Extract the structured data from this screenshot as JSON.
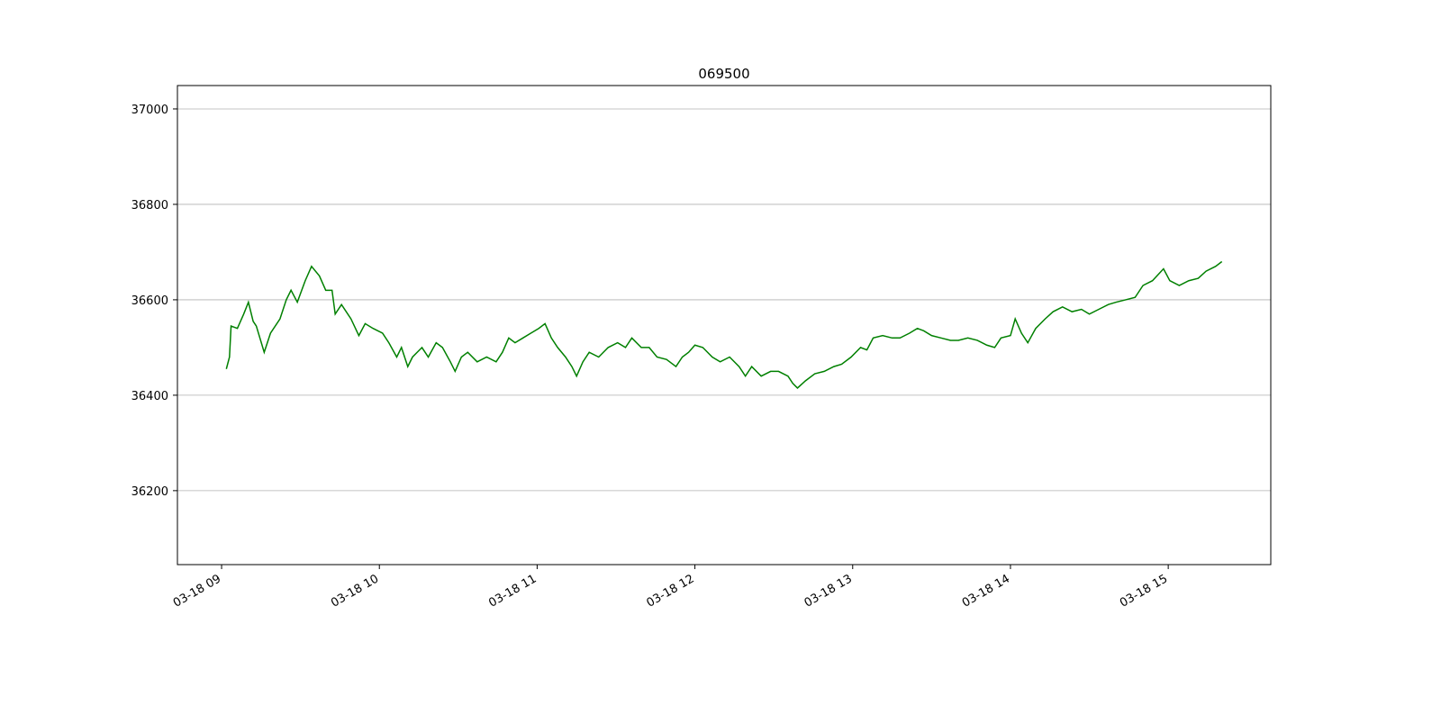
{
  "chart_data": {
    "type": "line",
    "title": "069500",
    "x": [
      9.03,
      9.05,
      9.06,
      9.1,
      9.14,
      9.17,
      9.2,
      9.22,
      9.27,
      9.31,
      9.37,
      9.41,
      9.44,
      9.48,
      9.53,
      9.57,
      9.62,
      9.66,
      9.7,
      9.72,
      9.76,
      9.82,
      9.87,
      9.91,
      9.96,
      10.02,
      10.06,
      10.11,
      10.14,
      10.18,
      10.21,
      10.27,
      10.31,
      10.36,
      10.4,
      10.45,
      10.48,
      10.52,
      10.56,
      10.62,
      10.68,
      10.74,
      10.78,
      10.82,
      10.86,
      10.91,
      10.96,
      11.01,
      11.05,
      11.09,
      11.13,
      11.18,
      11.22,
      11.25,
      11.29,
      11.33,
      11.39,
      11.45,
      11.51,
      11.56,
      11.6,
      11.66,
      11.71,
      11.76,
      11.82,
      11.88,
      11.92,
      11.96,
      12.0,
      12.05,
      12.11,
      12.16,
      12.22,
      12.28,
      12.32,
      12.36,
      12.42,
      12.48,
      12.53,
      12.59,
      12.62,
      12.65,
      12.7,
      12.76,
      12.82,
      12.88,
      12.93,
      12.99,
      13.05,
      13.09,
      13.13,
      13.19,
      13.25,
      13.3,
      13.36,
      13.41,
      13.45,
      13.5,
      13.56,
      13.62,
      13.67,
      13.73,
      13.79,
      13.85,
      13.9,
      13.94,
      14.0,
      14.03,
      14.07,
      14.11,
      14.16,
      14.22,
      14.27,
      14.33,
      14.39,
      14.45,
      14.5,
      14.56,
      14.62,
      14.67,
      14.73,
      14.79,
      14.84,
      14.9,
      14.97,
      15.01,
      15.07,
      15.13,
      15.19,
      15.24,
      15.3,
      15.34
    ],
    "series": [
      {
        "name": "069500",
        "color": "#008000",
        "values": [
          36455,
          36480,
          36545,
          36540,
          36570,
          36595,
          36555,
          36545,
          36490,
          36530,
          36560,
          36600,
          36620,
          36595,
          36640,
          36670,
          36650,
          36620,
          36620,
          36570,
          36590,
          36560,
          36525,
          36550,
          36540,
          36530,
          36510,
          36480,
          36500,
          36460,
          36480,
          36500,
          36480,
          36510,
          36500,
          36470,
          36450,
          36480,
          36490,
          36470,
          36480,
          36470,
          36490,
          36520,
          36510,
          36520,
          36530,
          36540,
          36550,
          36520,
          36500,
          36480,
          36460,
          36440,
          36470,
          36490,
          36480,
          36500,
          36510,
          36500,
          36520,
          36500,
          36500,
          36480,
          36475,
          36460,
          36480,
          36490,
          36505,
          36500,
          36480,
          36470,
          36480,
          36460,
          36440,
          36460,
          36440,
          36450,
          36450,
          36440,
          36425,
          36415,
          36430,
          36445,
          36450,
          36460,
          36465,
          36480,
          36500,
          36495,
          36520,
          36525,
          36520,
          36520,
          36530,
          36540,
          36535,
          36525,
          36520,
          36515,
          36515,
          36520,
          36515,
          36505,
          36500,
          36520,
          36525,
          36560,
          36530,
          36510,
          36540,
          36560,
          36575,
          36585,
          36575,
          36580,
          36570,
          36580,
          36590,
          36595,
          36600,
          36605,
          36630,
          36640,
          36665,
          36640,
          36630,
          36640,
          36645,
          36660,
          36670,
          36680
        ]
      }
    ],
    "xlim": [
      8.72,
      15.65
    ],
    "xticks": [
      {
        "value": 9,
        "label": "03-18 09"
      },
      {
        "value": 10,
        "label": "03-18 10"
      },
      {
        "value": 11,
        "label": "03-18 11"
      },
      {
        "value": 12,
        "label": "03-18 12"
      },
      {
        "value": 13,
        "label": "03-18 13"
      },
      {
        "value": 14,
        "label": "03-18 14"
      },
      {
        "value": 15,
        "label": "03-18 15"
      }
    ],
    "ylim": [
      36045,
      37049
    ],
    "yticks": [
      36200,
      36400,
      36600,
      36800,
      37000
    ],
    "grid": "y"
  }
}
